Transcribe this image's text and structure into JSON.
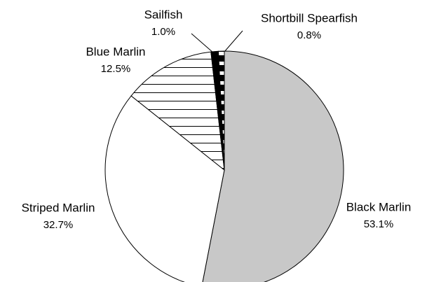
{
  "chart_data": {
    "type": "pie",
    "categories": [
      "Black Marlin",
      "Striped Marlin",
      "Blue Marlin",
      "Sailfish",
      "Shortbill Spearfish"
    ],
    "values": [
      53.1,
      32.7,
      12.5,
      1.0,
      0.8
    ],
    "value_labels": [
      "53.1%",
      "32.7%",
      "12.5%",
      "1.0%",
      "0.8%"
    ],
    "colors": [
      "#c8c8c8",
      "#ffffff",
      "#ffffff",
      "#000000",
      "#000000"
    ]
  }
}
